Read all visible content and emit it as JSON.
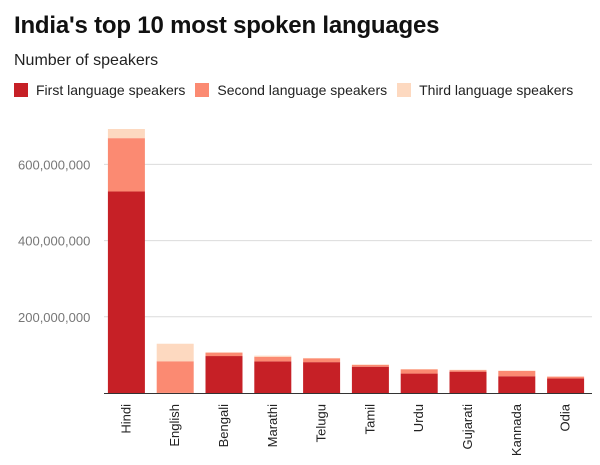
{
  "chart_data": {
    "type": "bar",
    "stacked": true,
    "title": "India's top 10 most spoken languages",
    "subtitle": "Number of speakers",
    "categories": [
      "Hindi",
      "English",
      "Bengali",
      "Marathi",
      "Telugu",
      "Tamil",
      "Urdu",
      "Gujarati",
      "Kannada",
      "Odia"
    ],
    "series": [
      {
        "name": "First language speakers",
        "color": "#c62026",
        "values": [
          529000000,
          300000,
          97000000,
          83000000,
          81000000,
          69000000,
          51000000,
          56000000,
          44000000,
          38000000
        ]
      },
      {
        "name": "Second language speakers",
        "color": "#fb8a72",
        "values": [
          140000000,
          83000000,
          9000000,
          12000000,
          10000000,
          5000000,
          11000000,
          4000000,
          14000000,
          5000000
        ]
      },
      {
        "name": "Third language speakers",
        "color": "#fdd9c0",
        "values": [
          24000000,
          46000000,
          1000000,
          3000000,
          1000000,
          1000000,
          1000000,
          1000000,
          1000000,
          0
        ]
      }
    ],
    "yticks": [
      {
        "value": 200000000,
        "label": "200,000,000"
      },
      {
        "value": 400000000,
        "label": "400,000,000"
      },
      {
        "value": 600000000,
        "label": "600,000,000"
      }
    ],
    "ylim": [
      0,
      700000000
    ],
    "grid": true,
    "legend_position": "top-left"
  }
}
